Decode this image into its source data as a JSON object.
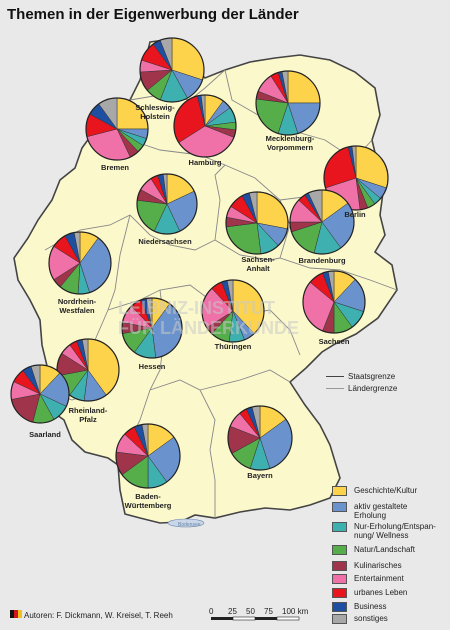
{
  "title": "Themen in der Eigenwerbung der Länder",
  "colors": {
    "sea": "#e9e9e9",
    "land": "#fbf8cc",
    "outside": "#e3e3e3",
    "geschichte": "#fcd34a",
    "aktiv": "#6a92cc",
    "wellness": "#3fb0b0",
    "natur": "#55ae4a",
    "kulinarisch": "#a0344a",
    "entertainment": "#f070a8",
    "urban": "#e8141e",
    "business": "#1f4fa0",
    "sonstiges": "#a8a8a8"
  },
  "legend": {
    "border_state": "Staatsgrenze",
    "border_land": "Ländergrenze",
    "items": [
      {
        "key": "geschichte",
        "label": "Geschichte/Kultur"
      },
      {
        "key": "aktiv",
        "label": "aktiv gestaltete\nErholung"
      },
      {
        "key": "wellness",
        "label": "Nur-Erholung/Entspan-\nnung/ Wellness"
      },
      {
        "key": "natur",
        "label": "Natur/Landschaft"
      },
      {
        "key": "kulinarisch",
        "label": "Kulinarisches"
      },
      {
        "key": "entertainment",
        "label": "Entertainment"
      },
      {
        "key": "urban",
        "label": "urbanes Leben"
      },
      {
        "key": "business",
        "label": "Business"
      },
      {
        "key": "sonstiges",
        "label": "sonstiges"
      }
    ]
  },
  "states": [
    {
      "name": "Schleswig-\nHolstein",
      "values": {
        "geschichte": 0.3,
        "aktiv": 0.12,
        "wellness": 0.14,
        "natur": 0.08,
        "kulinarisch": 0.1,
        "entertainment": 0.06,
        "urban": 0.1,
        "business": 0.04,
        "sonstiges": 0.06
      }
    },
    {
      "name": "Mecklenburg-\nVorpommern",
      "values": {
        "geschichte": 0.25,
        "aktiv": 0.2,
        "wellness": 0.1,
        "natur": 0.22,
        "kulinarisch": 0.04,
        "entertainment": 0.1,
        "urban": 0.04,
        "business": 0.02,
        "sonstiges": 0.03
      }
    },
    {
      "name": "Bremen",
      "values": {
        "geschichte": 0.25,
        "aktiv": 0.05,
        "wellness": 0.04,
        "natur": 0.04,
        "kulinarisch": 0.05,
        "entertainment": 0.28,
        "urban": 0.12,
        "business": 0.07,
        "sonstiges": 0.1
      }
    },
    {
      "name": "Hamburg",
      "values": {
        "geschichte": 0.1,
        "aktiv": 0.05,
        "wellness": 0.08,
        "natur": 0.04,
        "kulinarisch": 0.04,
        "entertainment": 0.35,
        "urban": 0.3,
        "business": 0.02,
        "sonstiges": 0.02
      }
    },
    {
      "name": "Berlin",
      "values": {
        "geschichte": 0.3,
        "aktiv": 0.06,
        "wellness": 0.04,
        "natur": 0.04,
        "kulinarisch": 0.04,
        "entertainment": 0.22,
        "urban": 0.26,
        "business": 0.02,
        "sonstiges": 0.02
      }
    },
    {
      "name": "Niedersachsen",
      "values": {
        "geschichte": 0.18,
        "aktiv": 0.25,
        "wellness": 0.14,
        "natur": 0.2,
        "kulinarisch": 0.06,
        "entertainment": 0.08,
        "urban": 0.04,
        "business": 0.03,
        "sonstiges": 0.02
      }
    },
    {
      "name": "Sachsen-\nAnhalt",
      "values": {
        "geschichte": 0.28,
        "aktiv": 0.1,
        "wellness": 0.1,
        "natur": 0.25,
        "kulinarisch": 0.05,
        "entertainment": 0.06,
        "urban": 0.08,
        "business": 0.04,
        "sonstiges": 0.04
      }
    },
    {
      "name": "Brandenburg",
      "values": {
        "geschichte": 0.15,
        "aktiv": 0.25,
        "wellness": 0.14,
        "natur": 0.16,
        "kulinarisch": 0.05,
        "entertainment": 0.12,
        "urban": 0.04,
        "business": 0.02,
        "sonstiges": 0.07
      }
    },
    {
      "name": "Nordrhein-\nWestfalen",
      "values": {
        "geschichte": 0.1,
        "aktiv": 0.35,
        "wellness": 0.06,
        "natur": 0.1,
        "kulinarisch": 0.05,
        "entertainment": 0.18,
        "urban": 0.08,
        "business": 0.05,
        "sonstiges": 0.03
      }
    },
    {
      "name": "Thüringen",
      "values": {
        "geschichte": 0.38,
        "aktiv": 0.06,
        "wellness": 0.08,
        "natur": 0.1,
        "kulinarisch": 0.04,
        "entertainment": 0.22,
        "urban": 0.06,
        "business": 0.03,
        "sonstiges": 0.03
      }
    },
    {
      "name": "Sachsen",
      "values": {
        "geschichte": 0.12,
        "aktiv": 0.18,
        "wellness": 0.1,
        "natur": 0.1,
        "kulinarisch": 0.06,
        "entertainment": 0.3,
        "urban": 0.08,
        "business": 0.03,
        "sonstiges": 0.03
      }
    },
    {
      "name": "Hessen",
      "values": {
        "geschichte": 0.1,
        "aktiv": 0.38,
        "wellness": 0.12,
        "natur": 0.12,
        "kulinarisch": 0.06,
        "entertainment": 0.1,
        "urban": 0.06,
        "business": 0.03,
        "sonstiges": 0.03
      }
    },
    {
      "name": "Rheinland-\nPfalz",
      "values": {
        "geschichte": 0.4,
        "aktiv": 0.12,
        "wellness": 0.08,
        "natur": 0.12,
        "kulinarisch": 0.12,
        "entertainment": 0.06,
        "urban": 0.04,
        "business": 0.03,
        "sonstiges": 0.03
      }
    },
    {
      "name": "Saarland",
      "values": {
        "geschichte": 0.12,
        "aktiv": 0.2,
        "wellness": 0.1,
        "natur": 0.12,
        "kulinarisch": 0.18,
        "entertainment": 0.1,
        "urban": 0.08,
        "business": 0.05,
        "sonstiges": 0.05
      }
    },
    {
      "name": "Baden-\nWürttemberg",
      "values": {
        "geschichte": 0.15,
        "aktiv": 0.25,
        "wellness": 0.1,
        "natur": 0.15,
        "kulinarisch": 0.12,
        "entertainment": 0.1,
        "urban": 0.06,
        "business": 0.04,
        "sonstiges": 0.03
      }
    },
    {
      "name": "Bayern",
      "values": {
        "geschichte": 0.15,
        "aktiv": 0.3,
        "wellness": 0.1,
        "natur": 0.12,
        "kulinarisch": 0.14,
        "entertainment": 0.08,
        "urban": 0.04,
        "business": 0.03,
        "sonstiges": 0.04
      }
    }
  ],
  "sea_labels": [
    "Bodensee"
  ],
  "watermark": "LEIBNIZ-INSTITUT\nFÜR LÄNDERKUNDE",
  "authors": "Autoren: F. Dickmann, W. Kreisel, T. Reeh",
  "scale": {
    "ticks": [
      "0",
      "25",
      "50",
      "75",
      "100 km"
    ]
  }
}
